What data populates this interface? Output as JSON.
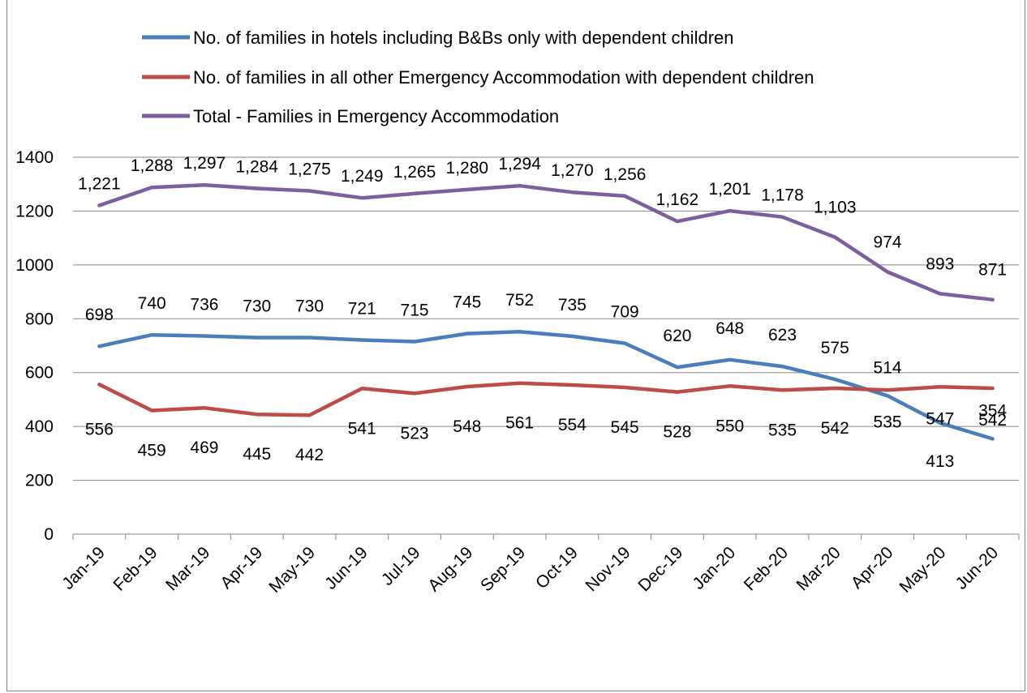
{
  "chart_data": {
    "type": "line",
    "title": "",
    "xlabel": "",
    "ylabel": "",
    "ylim": [
      0,
      1400
    ],
    "yticks": [
      "0",
      "200",
      "400",
      "600",
      "800",
      "1000",
      "1200",
      "1400"
    ],
    "categories": [
      "Jan-19",
      "Feb-19",
      "Mar-19",
      "Apr-19",
      "May-19",
      "Jun-19",
      "Jul-19",
      "Aug-19",
      "Sep-19",
      "Oct-19",
      "Nov-19",
      "Dec-19",
      "Jan-20",
      "Feb-20",
      "Mar-20",
      "Apr-20",
      "May-20",
      "Jun-20"
    ],
    "grid": true,
    "legend_position": "top",
    "series": [
      {
        "name": "No. of families in hotels including B&Bs only with dependent children",
        "color": "#4a7ebb",
        "values": [
          698,
          740,
          736,
          730,
          730,
          721,
          715,
          745,
          752,
          735,
          709,
          620,
          648,
          623,
          575,
          514,
          413,
          354
        ],
        "labels": [
          "698",
          "740",
          "736",
          "730",
          "730",
          "721",
          "715",
          "745",
          "752",
          "735",
          "709",
          "620",
          "648",
          "623",
          "575",
          "514",
          "413",
          "354"
        ]
      },
      {
        "name": "No. of families in all other Emergency Accommodation with dependent children",
        "color": "#be4b48",
        "values": [
          556,
          459,
          469,
          445,
          442,
          541,
          523,
          548,
          561,
          554,
          545,
          528,
          550,
          535,
          542,
          535,
          547,
          542
        ],
        "labels": [
          "556",
          "459",
          "469",
          "445",
          "442",
          "541",
          "523",
          "548",
          "561",
          "554",
          "545",
          "528",
          "550",
          "535",
          "542",
          "535",
          "547",
          "542"
        ]
      },
      {
        "name": "Total  -  Families in Emergency Accommodation",
        "color": "#7d5fa0",
        "values": [
          1221,
          1288,
          1297,
          1284,
          1275,
          1249,
          1265,
          1280,
          1294,
          1270,
          1256,
          1162,
          1201,
          1178,
          1103,
          974,
          893,
          871
        ],
        "labels": [
          "1,221",
          "1,288",
          "1,297",
          "1,284",
          "1,275",
          "1,249",
          "1,265",
          "1,280",
          "1,294",
          "1,270",
          "1,256",
          "1,162",
          "1,201",
          "1,178",
          "1,103",
          "974",
          "893",
          "871"
        ]
      }
    ]
  }
}
